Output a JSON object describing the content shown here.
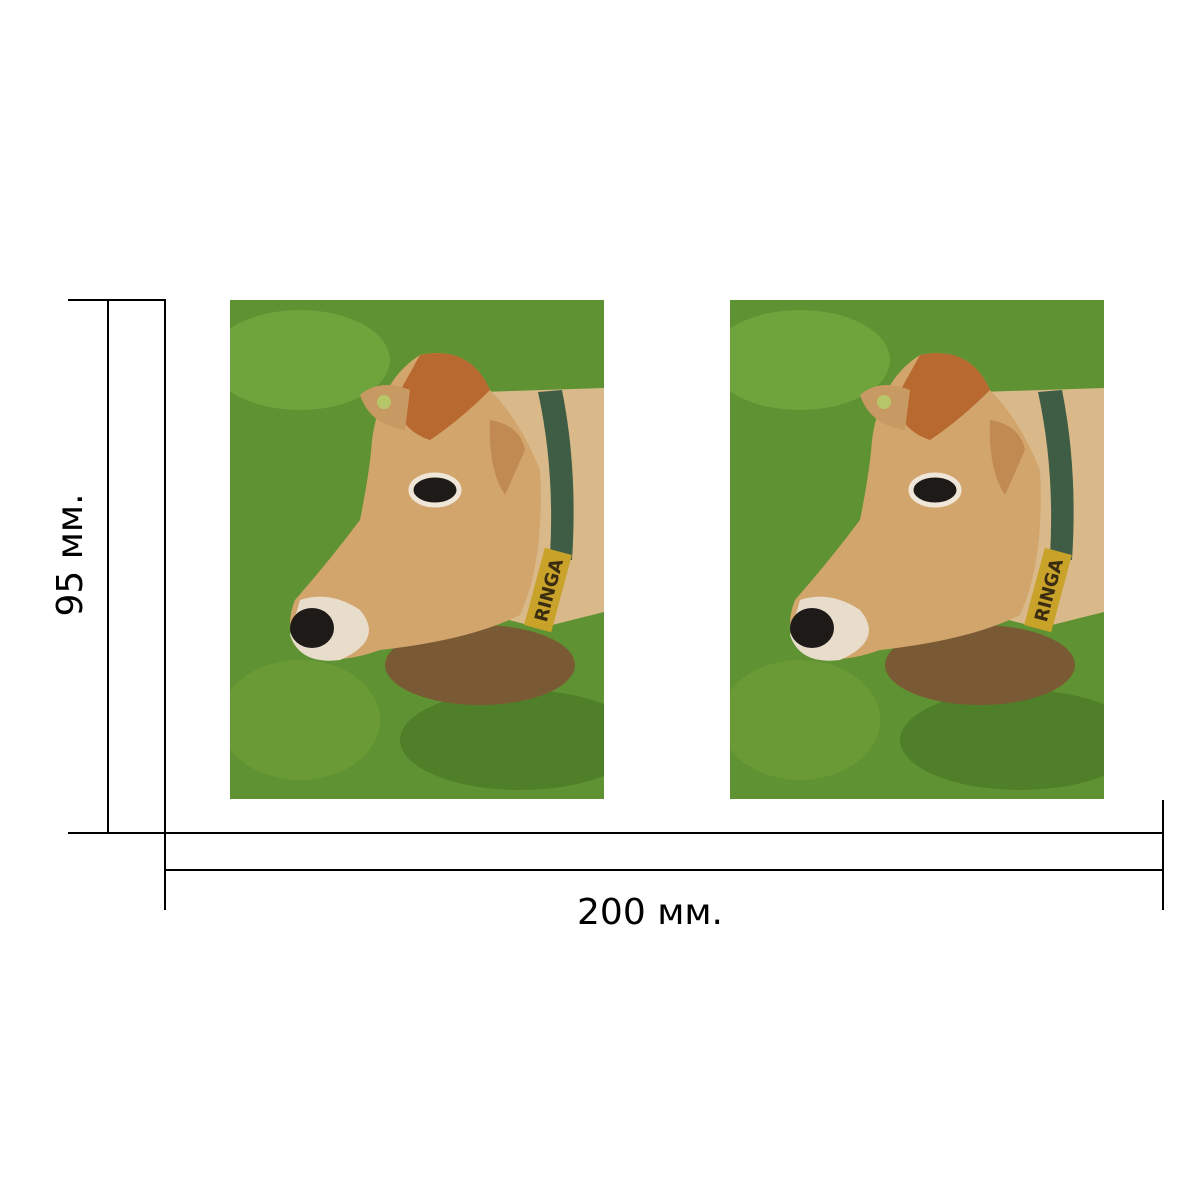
{
  "dimensions": {
    "height_label": "95 мм.",
    "width_label": "200 мм."
  },
  "photo": {
    "collar_text": "RINGA"
  }
}
